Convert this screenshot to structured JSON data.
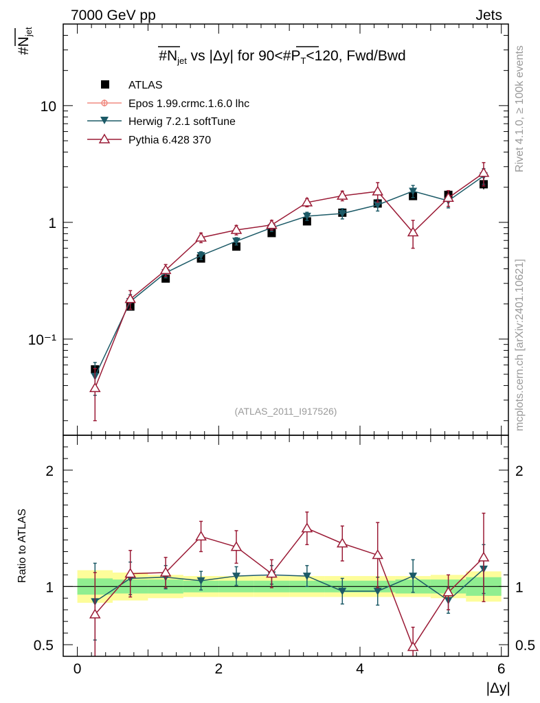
{
  "header": {
    "left": "7000 GeV pp",
    "right": "Jets"
  },
  "side_labels": {
    "rivet": "Rivet 4.1.0, ≥ 100k events",
    "mcplots": "mcplots.cern.ch [arXiv:2401.10621]"
  },
  "chart_data": {
    "type": "scatter",
    "title": "#N̅jet vs |Δy| for 90<#P̅T<120, Fwd/Bwd",
    "title_parts": {
      "pre": "#",
      "n": "N",
      "n_sub": "jet",
      "mid": " vs |Δy| for 90<#",
      "p": "P",
      "p_sub": "T",
      "post": "<120, Fwd/Bwd"
    },
    "ylabel_parts": {
      "hash": "#",
      "n": "N",
      "sub": "jet"
    },
    "xlabel": "|Δy|",
    "ratio_ylabel": "Ratio to ATLAS",
    "reference_label": "(ATLAS_2011_I917526)",
    "xlim": [
      -0.2,
      6.1
    ],
    "ylim": [
      0.015,
      50
    ],
    "yscale": "log",
    "ratio_ylim": [
      0.4,
      2.3
    ],
    "x_ticks": [
      "0",
      "2",
      "4",
      "6"
    ],
    "y_ticks": [
      "10⁻¹",
      "1",
      "10"
    ],
    "ratio_ticks": [
      "0.5",
      "1",
      "2"
    ],
    "x": [
      0.25,
      0.75,
      1.25,
      1.75,
      2.25,
      2.75,
      3.25,
      3.75,
      4.25,
      4.75,
      5.25,
      5.75
    ],
    "x_halfwidth": 0.25,
    "data": {
      "name": "ATLAS",
      "values": [
        0.055,
        0.19,
        0.33,
        0.49,
        0.62,
        0.81,
        1.02,
        1.21,
        1.45,
        1.68,
        1.72,
        2.12
      ],
      "errors": [
        0.004,
        0.012,
        0.02,
        0.03,
        0.035,
        0.045,
        0.055,
        0.07,
        0.09,
        0.1,
        0.13,
        0.2
      ]
    },
    "band_inner": [
      0.07,
      0.06,
      0.06,
      0.05,
      0.05,
      0.05,
      0.05,
      0.05,
      0.05,
      0.06,
      0.06,
      0.08
    ],
    "band_outer": [
      0.14,
      0.12,
      0.1,
      0.09,
      0.09,
      0.09,
      0.09,
      0.09,
      0.09,
      0.09,
      0.1,
      0.13
    ],
    "series": [
      {
        "name": "Epos 1.99.crmc.1.6.0 lhc",
        "color": "#f08a80",
        "marker": "cross",
        "values": [],
        "errors": [],
        "ratios": []
      },
      {
        "name": "Herwig 7.2.1 softTune",
        "color": "#1c5a67",
        "marker": "triangle-down",
        "values": [
          0.048,
          0.21,
          0.37,
          0.52,
          0.69,
          0.9,
          1.13,
          1.19,
          1.41,
          1.85,
          1.53,
          2.5
        ],
        "errors": [
          0.015,
          0.03,
          0.035,
          0.04,
          0.05,
          0.065,
          0.09,
          0.12,
          0.16,
          0.22,
          0.2,
          0.38
        ],
        "ratios": [
          0.87,
          1.07,
          1.08,
          1.05,
          1.09,
          1.1,
          1.09,
          0.96,
          0.96,
          1.09,
          0.88,
          1.15
        ],
        "ratio_errors": [
          0.33,
          0.14,
          0.1,
          0.08,
          0.08,
          0.08,
          0.09,
          0.11,
          0.12,
          0.14,
          0.11,
          0.21
        ]
      },
      {
        "name": "Pythia 6.428 370",
        "color": "#9a1a35",
        "marker": "triangle-open",
        "values": [
          0.038,
          0.22,
          0.39,
          0.74,
          0.86,
          0.95,
          1.48,
          1.69,
          1.84,
          0.82,
          1.62,
          2.65
        ],
        "errors": [
          0.018,
          0.04,
          0.045,
          0.07,
          0.08,
          0.09,
          0.12,
          0.16,
          0.35,
          0.22,
          0.25,
          0.6
        ],
        "ratios": [
          0.76,
          1.11,
          1.12,
          1.43,
          1.34,
          1.11,
          1.5,
          1.37,
          1.27,
          0.48,
          0.95,
          1.25
        ],
        "ratio_errors": [
          0.36,
          0.2,
          0.13,
          0.13,
          0.14,
          0.12,
          0.14,
          0.15,
          0.28,
          0.17,
          0.15,
          0.38
        ]
      }
    ],
    "legend": [
      "ATLAS",
      "Epos 1.99.crmc.1.6.0 lhc",
      "Herwig 7.2.1 softTune",
      "Pythia 6.428 370"
    ]
  }
}
